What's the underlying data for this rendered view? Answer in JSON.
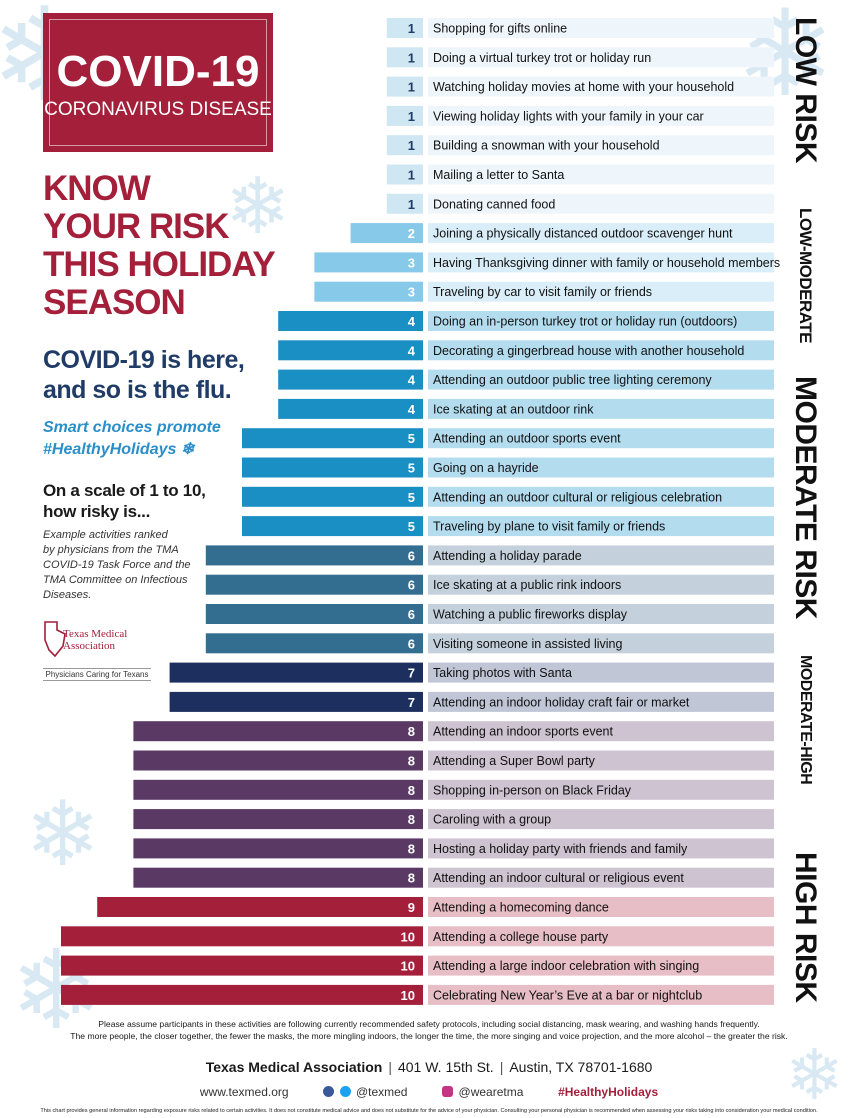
{
  "badge": {
    "title": "COVID-19",
    "subtitle": "CORONAVIRUS DISEASE"
  },
  "headline": [
    "KNOW",
    "YOUR RISK",
    "THIS HOLIDAY",
    "SEASON"
  ],
  "intro": [
    "COVID-19 is here,",
    "and so is the flu."
  ],
  "smart": [
    "Smart choices promote",
    "#HealthyHolidays ❄"
  ],
  "scale_question": [
    "On a scale of 1 to 10,",
    "how risky is..."
  ],
  "note": [
    "Example activities ranked",
    "by physicians from the TMA",
    "COVID-19 Task Force and the",
    "TMA Committee on Infectious",
    "Diseases."
  ],
  "logo": {
    "name_line1": "Texas Medical",
    "name_line2": "Association",
    "tagline": "Physicians Caring for Texans"
  },
  "colors": {
    "1": {
      "bar": "#cfe6f3",
      "label": "#eff6fb"
    },
    "2": {
      "bar": "#86c9e8",
      "label": "#d9eef8"
    },
    "3": {
      "bar": "#86c9e8",
      "label": "#d9eef8"
    },
    "4": {
      "bar": "#1a8fc4",
      "label": "#b3dcef"
    },
    "5": {
      "bar": "#1a8fc4",
      "label": "#b3dcef"
    },
    "6": {
      "bar": "#336d8f",
      "label": "#c4d1dc"
    },
    "7": {
      "bar": "#1c2f5e",
      "label": "#c1c6d7"
    },
    "8": {
      "bar": "#5a3a65",
      "label": "#cec3d0"
    },
    "9": {
      "bar": "#a31f3a",
      "label": "#e7bdc6"
    },
    "10": {
      "bar": "#a31f3a",
      "label": "#e7bdc6"
    }
  },
  "chart_data": {
    "type": "bar",
    "orientation": "horizontal",
    "xlim": [
      0,
      10
    ],
    "categories": [
      "Shopping for gifts online",
      "Doing a virtual turkey trot or holiday run",
      "Watching holiday movies at home with your household",
      "Viewing holiday lights with your family in your car",
      "Building a snowman with your household",
      "Mailing a letter to Santa",
      "Donating canned food",
      "Joining a physically distanced outdoor scavenger hunt",
      "Having Thanksgiving dinner with family or household members",
      "Traveling by car to visit family or friends",
      "Doing an in-person turkey trot or holiday run (outdoors)",
      "Decorating a gingerbread house with another household",
      "Attending an outdoor public tree lighting ceremony",
      "Ice skating at an outdoor rink",
      "Attending an outdoor sports event",
      "Going on a hayride",
      "Attending an outdoor cultural or religious celebration",
      "Traveling by plane to visit family or friends",
      "Attending a holiday parade",
      "Ice skating at a public rink indoors",
      "Watching a public fireworks display",
      "Visiting someone in assisted living",
      "Taking photos with Santa",
      "Attending an indoor holiday craft fair or market",
      "Attending an indoor sports event",
      "Attending a Super Bowl party",
      "Shopping in-person on Black Friday",
      "Caroling with a group",
      "Hosting a holiday party with friends and family",
      "Attending an indoor cultural or religious event",
      "Attending a homecoming dance",
      "Attending a college house party",
      "Attending a large indoor celebration with singing",
      "Celebrating New Year’s Eve at a bar or nightclub"
    ],
    "values": [
      1,
      1,
      1,
      1,
      1,
      1,
      1,
      2,
      3,
      3,
      4,
      4,
      4,
      4,
      5,
      5,
      5,
      5,
      6,
      6,
      6,
      6,
      7,
      7,
      8,
      8,
      8,
      8,
      8,
      8,
      9,
      10,
      10,
      10
    ],
    "risk_groups": [
      {
        "label": "LOW RISK",
        "rows": [
          0,
          6
        ]
      },
      {
        "label": "LOW-MODERATE",
        "rows": [
          7,
          9
        ]
      },
      {
        "label": "MODERATE RISK",
        "rows": [
          10,
          17
        ]
      },
      {
        "label": "MODERATE-HIGH",
        "rows": [
          18,
          23
        ]
      },
      {
        "label": "HIGH RISK",
        "rows": [
          24,
          33
        ]
      }
    ]
  },
  "footnote": [
    "Please assume participants in these activities are following currently recommended safety protocols, including social distancing, mask wearing, and washing hands frequently.",
    "The more people, the closer together, the fewer the masks, the more mingling indoors, the longer the time, the more singing and voice projection, and the more alcohol – the greater the risk."
  ],
  "contact": {
    "org": "Texas Medical Association",
    "address": "401 W. 15th St.",
    "city": "Austin, TX 78701-1680"
  },
  "social": {
    "website": "www.texmed.org",
    "twitter_facebook": "@texmed",
    "instagram": "@wearetma",
    "hashtag": "#HealthyHolidays"
  },
  "disclaimer": "This chart provides general information regarding exposure risks related to certain activities. It does not constitute medical advice and does not substitute for the advice of your physician. Consulting your personal physician is recommended when assessing your risks taking into consideration your medical condition."
}
